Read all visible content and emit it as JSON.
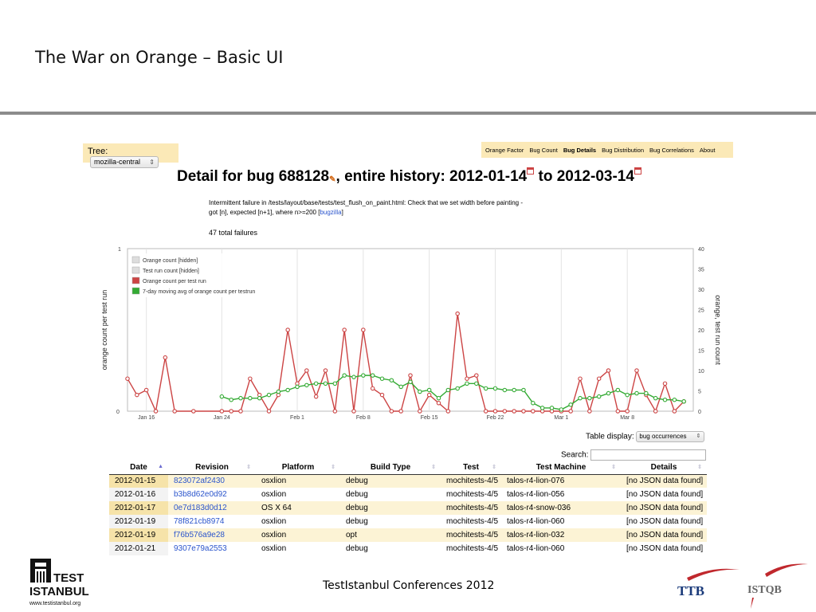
{
  "slide": {
    "title": "The War on Orange – Basic UI",
    "footer": "TestIstanbul Conferences 2012"
  },
  "tree": {
    "label": "Tree:",
    "value": "mozilla-central"
  },
  "nav": [
    "Orange Factor",
    "Bug Count",
    "Bug Details",
    "Bug Distribution",
    "Bug Correlations",
    "About"
  ],
  "nav_active": "Bug Details",
  "heading": {
    "prefix": "Detail for bug 688128",
    "middle": ", entire history: 2012-01-14",
    "to": " to 2012-03-14"
  },
  "description": {
    "text": "Intermittent failure in /tests/layout/base/tests/test_flush_on_paint.html: Check that we set width before painting - got [n], expected [n+1], where n>=200 [",
    "link": "bugzilla",
    "tail": "]"
  },
  "total_failures": "47 total failures",
  "chart_data": {
    "type": "line",
    "ylabel_left": "orange count per test run",
    "ylabel_right": "orange, test run count",
    "yticks_left": [
      "1",
      "0"
    ],
    "yticks_right": [
      "40",
      "35",
      "30",
      "25",
      "20",
      "15",
      "10",
      "5",
      "0"
    ],
    "ylim_left": [
      0,
      1
    ],
    "ylim_right": [
      0,
      40
    ],
    "xlim": [
      0,
      60
    ],
    "xticks": [
      {
        "label": "Jan 16",
        "x": 2
      },
      {
        "label": "Jan 24",
        "x": 10
      },
      {
        "label": "Feb 1",
        "x": 18
      },
      {
        "label": "Feb 8",
        "x": 25
      },
      {
        "label": "Feb 15",
        "x": 32
      },
      {
        "label": "Feb 22",
        "x": 39
      },
      {
        "label": "Mar 1",
        "x": 46
      },
      {
        "label": "Mar 8",
        "x": 53
      }
    ],
    "legend": [
      {
        "label": "Orange count [hidden]",
        "color": "#dddddd"
      },
      {
        "label": "Test run count [hidden]",
        "color": "#dddddd"
      },
      {
        "label": "Orange count per test run",
        "color": "#cc4444"
      },
      {
        "label": "7-day moving avg of orange count per testrun",
        "color": "#33aa33"
      }
    ],
    "series": [
      {
        "name": "Orange count per test run",
        "color": "#cc4444",
        "x": [
          0,
          1,
          2,
          3,
          4,
          5,
          7,
          10,
          11,
          12,
          13,
          14,
          15,
          16,
          17,
          18,
          19,
          20,
          21,
          22,
          23,
          24,
          25,
          26,
          27,
          28,
          29,
          30,
          31,
          32,
          33,
          34,
          35,
          36,
          37,
          38,
          39,
          40,
          41,
          42,
          43,
          44,
          45,
          46,
          47,
          48,
          49,
          50,
          51,
          52,
          53,
          54,
          55,
          56,
          57,
          58,
          59
        ],
        "y": [
          0.2,
          0.1,
          0.13,
          0,
          0.33,
          0,
          0,
          0,
          0,
          0,
          0.2,
          0.1,
          0,
          0.1,
          0.5,
          0.17,
          0.25,
          0.09,
          0.25,
          0,
          0.5,
          0,
          0.5,
          0.14,
          0.1,
          0,
          0,
          0.22,
          0,
          0.1,
          0.05,
          0,
          0.6,
          0.2,
          0.22,
          0,
          0,
          0,
          0,
          0,
          0,
          0,
          0,
          0,
          0,
          0.2,
          0,
          0.2,
          0.25,
          0,
          0,
          0.25,
          0.1,
          0,
          0.17,
          0,
          0.06
        ]
      },
      {
        "name": "7-day moving avg of orange count per testrun",
        "color": "#33aa33",
        "x": [
          10,
          11,
          12,
          13,
          14,
          15,
          16,
          17,
          18,
          19,
          20,
          21,
          22,
          23,
          24,
          25,
          26,
          27,
          28,
          29,
          30,
          31,
          32,
          33,
          34,
          35,
          36,
          37,
          38,
          39,
          40,
          41,
          42,
          43,
          44,
          45,
          46,
          47,
          48,
          49,
          50,
          51,
          52,
          53,
          54,
          55,
          56,
          57,
          58,
          59
        ],
        "y": [
          0.09,
          0.07,
          0.08,
          0.08,
          0.08,
          0.1,
          0.12,
          0.13,
          0.15,
          0.16,
          0.17,
          0.17,
          0.17,
          0.22,
          0.21,
          0.22,
          0.22,
          0.2,
          0.19,
          0.15,
          0.18,
          0.12,
          0.13,
          0.08,
          0.13,
          0.14,
          0.17,
          0.17,
          0.14,
          0.14,
          0.13,
          0.13,
          0.13,
          0.05,
          0.02,
          0.02,
          0.01,
          0.04,
          0.08,
          0.08,
          0.09,
          0.11,
          0.13,
          0.1,
          0.11,
          0.11,
          0.08,
          0.07,
          0.07,
          0.06
        ]
      }
    ]
  },
  "table_display": {
    "label": "Table display:",
    "value": "bug occurrences"
  },
  "search": {
    "label": "Search:",
    "value": ""
  },
  "table": {
    "headers": [
      "Date",
      "Revision",
      "Platform",
      "Build Type",
      "Test",
      "Test Machine",
      "Details"
    ],
    "rows": [
      [
        "2012-01-15",
        "823072af2430",
        "osxlion",
        "debug",
        "mochitests-4/5",
        "talos-r4-lion-076",
        "[no JSON data found]"
      ],
      [
        "2012-01-16",
        "b3b8d62e0d92",
        "osxlion",
        "debug",
        "mochitests-4/5",
        "talos-r4-lion-056",
        "[no JSON data found]"
      ],
      [
        "2012-01-17",
        "0e7d183d0d12",
        "OS X 64",
        "debug",
        "mochitests-4/5",
        "talos-r4-snow-036",
        "[no JSON data found]"
      ],
      [
        "2012-01-19",
        "78f821cb8974",
        "osxlion",
        "debug",
        "mochitests-4/5",
        "talos-r4-lion-060",
        "[no JSON data found]"
      ],
      [
        "2012-01-19",
        "f76b576a9e28",
        "osxlion",
        "opt",
        "mochitests-4/5",
        "talos-r4-lion-032",
        "[no JSON data found]"
      ],
      [
        "2012-01-21",
        "9307e79a2553",
        "osxlion",
        "debug",
        "mochitests-4/5",
        "talos-r4-lion-060",
        "[no JSON data found]"
      ]
    ]
  },
  "logos": {
    "test_istanbul_line1": "TEST",
    "test_istanbul_line2": "ISTANBUL",
    "test_istanbul_url": "www.testistanbul.org",
    "ttb": "TTB",
    "istqb": "ISTQB"
  }
}
